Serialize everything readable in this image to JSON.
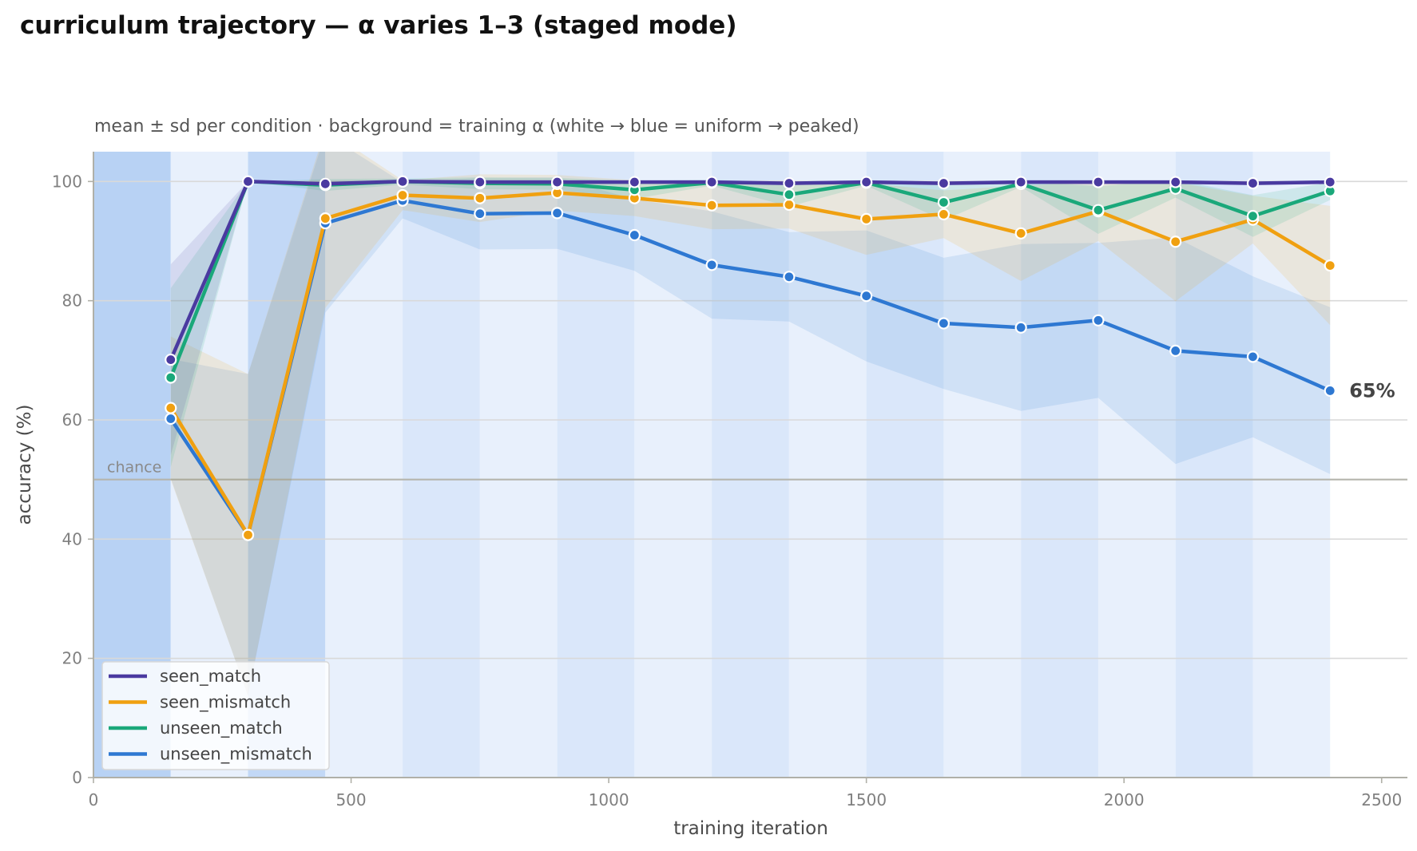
{
  "chart_data": {
    "type": "line",
    "title": "curriculum trajectory — α varies 1–3 (staged mode)",
    "subtitle": "mean ± sd per condition · background = training α (white → blue = uniform → peaked)",
    "xlabel": "training iteration",
    "ylabel": "accuracy (%)",
    "xlim": [
      0,
      2550
    ],
    "ylim": [
      0,
      105
    ],
    "xticks": [
      0,
      500,
      1000,
      1500,
      2000,
      2500
    ],
    "yticks": [
      0,
      20,
      40,
      60,
      80,
      100
    ],
    "grid": "horizontal",
    "legend_position": "bottom-left",
    "reference_line": {
      "y": 50,
      "label": "chance"
    },
    "end_annotation": {
      "series": "unseen_mismatch",
      "text": "65%"
    },
    "background_alpha": [
      {
        "x0": 0,
        "x1": 150,
        "alpha": 3.0
      },
      {
        "x0": 150,
        "x1": 300,
        "alpha": 1.0
      },
      {
        "x0": 300,
        "x1": 450,
        "alpha": 2.6
      },
      {
        "x0": 450,
        "x1": 600,
        "alpha": 1.0
      },
      {
        "x0": 600,
        "x1": 750,
        "alpha": 1.6
      },
      {
        "x0": 750,
        "x1": 900,
        "alpha": 1.0
      },
      {
        "x0": 900,
        "x1": 1050,
        "alpha": 1.6
      },
      {
        "x0": 1050,
        "x1": 1200,
        "alpha": 1.0
      },
      {
        "x0": 1200,
        "x1": 1350,
        "alpha": 1.6
      },
      {
        "x0": 1350,
        "x1": 1500,
        "alpha": 1.0
      },
      {
        "x0": 1500,
        "x1": 1650,
        "alpha": 1.6
      },
      {
        "x0": 1650,
        "x1": 1800,
        "alpha": 1.0
      },
      {
        "x0": 1800,
        "x1": 1950,
        "alpha": 1.6
      },
      {
        "x0": 1950,
        "x1": 2100,
        "alpha": 1.0
      },
      {
        "x0": 2100,
        "x1": 2250,
        "alpha": 1.6
      },
      {
        "x0": 2250,
        "x1": 2400,
        "alpha": 1.0
      }
    ],
    "x": [
      150,
      300,
      450,
      600,
      750,
      900,
      1050,
      1200,
      1350,
      1500,
      1650,
      1800,
      1950,
      2100,
      2250,
      2400
    ],
    "series": [
      {
        "name": "unseen_mismatch",
        "color": "#2e78d2",
        "values": [
          60.2,
          40.7,
          93.0,
          96.8,
          94.6,
          94.7,
          91.0,
          86.0,
          84.0,
          80.8,
          76.2,
          75.5,
          76.7,
          71.6,
          70.6,
          64.9
        ],
        "sd": [
          10,
          27,
          15,
          3,
          6,
          6,
          6,
          9,
          7.5,
          11,
          11,
          14,
          13,
          19,
          13.5,
          14
        ]
      },
      {
        "name": "seen_mismatch",
        "color": "#f0a010",
        "values": [
          62.0,
          40.7,
          93.8,
          97.7,
          97.2,
          98.1,
          97.2,
          96.0,
          96.1,
          93.7,
          94.5,
          91.3,
          95.0,
          89.9,
          93.6,
          85.9
        ],
        "sd": [
          12,
          27,
          15,
          2.5,
          4,
          3,
          3,
          4,
          4,
          6,
          4,
          8,
          5,
          10,
          4,
          10
        ]
      },
      {
        "name": "unseen_match",
        "color": "#1aa87a",
        "values": [
          67.1,
          100.0,
          99.4,
          100.0,
          99.7,
          99.6,
          98.6,
          99.8,
          97.8,
          99.8,
          96.5,
          99.6,
          95.2,
          98.8,
          94.2,
          98.4
        ],
        "sd": [
          15,
          0,
          1,
          0.5,
          1,
          1,
          1.5,
          0.5,
          2,
          0.5,
          3,
          0.5,
          4,
          1.5,
          3.5,
          1.5
        ]
      },
      {
        "name": "seen_match",
        "color": "#4a3aa0",
        "values": [
          70.1,
          100.0,
          99.6,
          100.0,
          99.9,
          99.9,
          99.9,
          99.9,
          99.7,
          99.9,
          99.7,
          99.9,
          99.9,
          99.9,
          99.7,
          99.9
        ],
        "sd": [
          16,
          0,
          0.5,
          0.2,
          0.3,
          0.3,
          0.3,
          0.3,
          0.3,
          0.3,
          0.3,
          0.3,
          0.3,
          0.3,
          0.3,
          0.3
        ]
      }
    ],
    "legend_order": [
      "seen_match",
      "seen_mismatch",
      "unseen_match",
      "unseen_mismatch"
    ]
  }
}
